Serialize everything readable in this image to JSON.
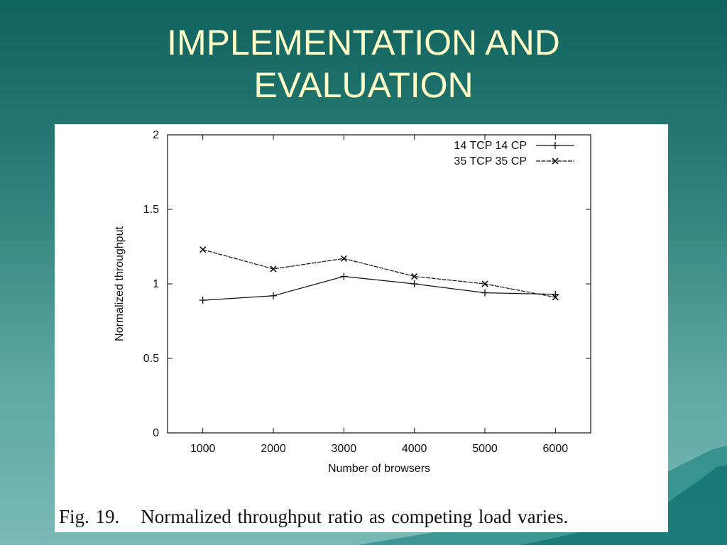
{
  "slide": {
    "title_line1": "IMPLEMENTATION AND",
    "title_line2": "EVALUATION"
  },
  "caption": {
    "fig_label": "Fig. 19.",
    "text": "Normalized throughput ratio as competing load varies."
  },
  "colors": {
    "title": "#ffffc8",
    "background_top": "#0f625d",
    "background_bottom": "#79b9b5",
    "plot_lines": "#111111"
  },
  "chart_data": {
    "type": "line",
    "title": "",
    "xlabel": "Number of browsers",
    "ylabel": "Normalized throughput",
    "x": [
      1000,
      2000,
      3000,
      4000,
      5000,
      6000
    ],
    "x_tick_labels": [
      "1000",
      "2000",
      "3000",
      "4000",
      "5000",
      "6000"
    ],
    "xlim": [
      500,
      6500
    ],
    "ylim": [
      0,
      2
    ],
    "y_ticks": [
      0,
      0.5,
      1,
      1.5,
      2
    ],
    "y_tick_labels": [
      "0",
      "0.5",
      "1",
      "1.5",
      "2"
    ],
    "grid": false,
    "legend_position": "top-right",
    "series": [
      {
        "name": "14 TCP 14 CP",
        "marker": "plus",
        "values": [
          0.89,
          0.92,
          1.05,
          1.0,
          0.94,
          0.93
        ]
      },
      {
        "name": "35 TCP 35 CP",
        "marker": "cross",
        "values": [
          1.23,
          1.1,
          1.17,
          1.05,
          1.0,
          0.91
        ]
      }
    ]
  }
}
